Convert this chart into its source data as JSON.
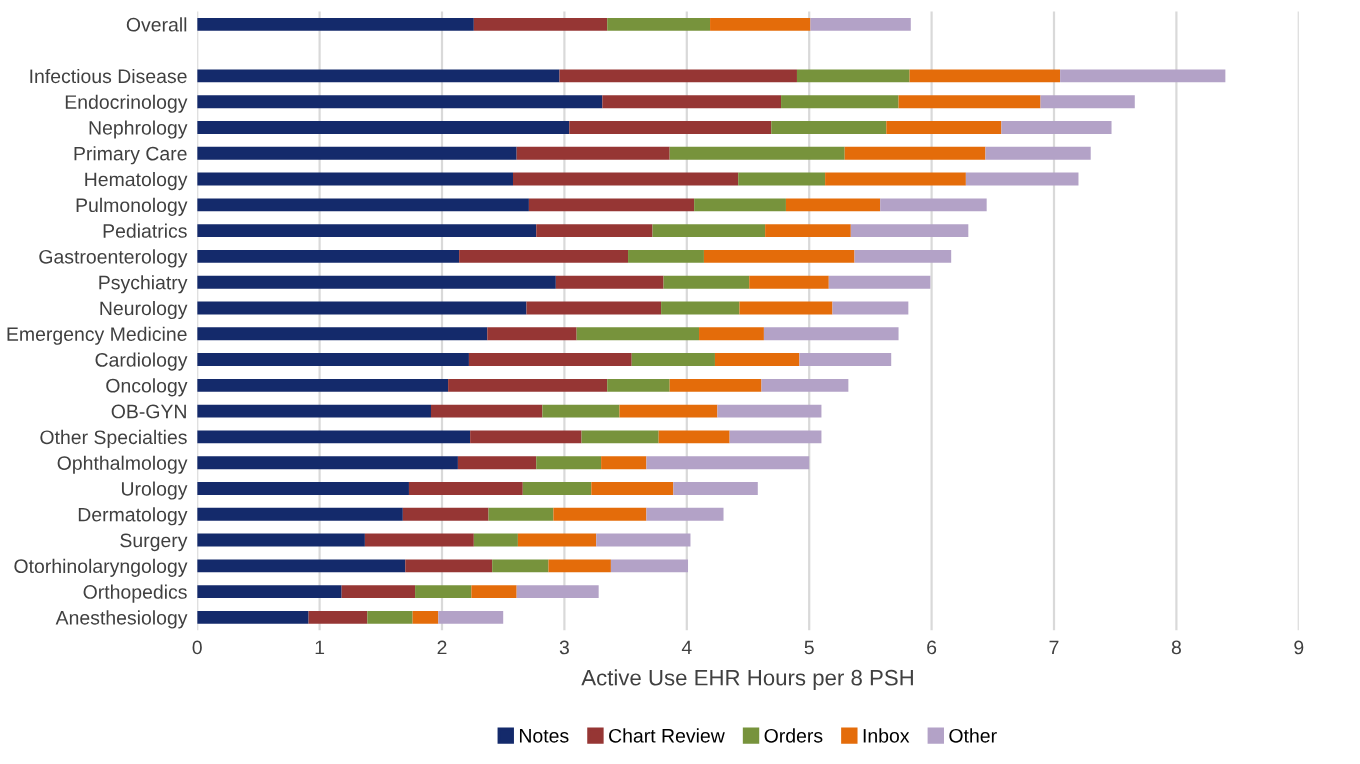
{
  "chart_data": {
    "type": "bar",
    "orientation": "horizontal",
    "stacked": true,
    "xlabel": "Active Use EHR Hours per 8 PSH",
    "categories": [
      "Overall",
      null,
      "Infectious Disease",
      "Endocrinology",
      "Nephrology",
      "Primary Care",
      "Hematology",
      "Pulmonology",
      "Pediatrics",
      "Gastroenterology",
      "Psychiatry",
      "Neurology",
      "Emergency Medicine",
      "Cardiology",
      "Oncology",
      "OB-GYN",
      "Other Specialties",
      "Ophthalmology",
      "Urology",
      "Dermatology",
      "Surgery",
      "Otorhinolaryngology",
      "Orthopedics",
      "Anesthesiology"
    ],
    "series": [
      {
        "name": "Notes",
        "color": "#142a6b",
        "values": [
          2.26,
          null,
          2.96,
          3.31,
          3.04,
          2.61,
          2.58,
          2.71,
          2.77,
          2.14,
          2.93,
          2.69,
          2.37,
          2.22,
          2.05,
          1.91,
          2.23,
          2.13,
          1.73,
          1.68,
          1.37,
          1.7,
          1.18,
          0.91
        ]
      },
      {
        "name": "Chart Review",
        "color": "#963634",
        "values": [
          1.09,
          null,
          1.94,
          1.46,
          1.65,
          1.25,
          1.84,
          1.35,
          0.95,
          1.38,
          0.88,
          1.1,
          0.73,
          1.33,
          1.3,
          0.91,
          0.91,
          0.64,
          0.93,
          0.7,
          0.89,
          0.71,
          0.6,
          0.48
        ]
      },
      {
        "name": "Orders",
        "color": "#77933c",
        "values": [
          0.84,
          null,
          0.92,
          0.96,
          0.94,
          1.43,
          0.71,
          0.75,
          0.92,
          0.62,
          0.7,
          0.64,
          1.0,
          0.68,
          0.51,
          0.63,
          0.63,
          0.53,
          0.56,
          0.53,
          0.36,
          0.46,
          0.46,
          0.37
        ]
      },
      {
        "name": "Inbox",
        "color": "#e46c0a",
        "values": [
          0.82,
          null,
          1.23,
          1.16,
          0.94,
          1.15,
          1.15,
          0.77,
          0.7,
          1.23,
          0.65,
          0.76,
          0.53,
          0.69,
          0.75,
          0.8,
          0.58,
          0.37,
          0.67,
          0.76,
          0.64,
          0.51,
          0.37,
          0.21
        ]
      },
      {
        "name": "Other",
        "color": "#b3a2c7",
        "values": [
          0.82,
          null,
          1.35,
          0.77,
          0.9,
          0.86,
          0.92,
          0.87,
          0.96,
          0.79,
          0.83,
          0.62,
          1.1,
          0.75,
          0.71,
          0.85,
          0.75,
          1.33,
          0.69,
          0.63,
          0.77,
          0.63,
          0.67,
          0.53
        ]
      }
    ],
    "xlim": [
      0,
      9
    ],
    "xticks": [
      0,
      1,
      2,
      3,
      4,
      5,
      6,
      7,
      8,
      9
    ],
    "grid": "x",
    "legend": "bottom"
  }
}
